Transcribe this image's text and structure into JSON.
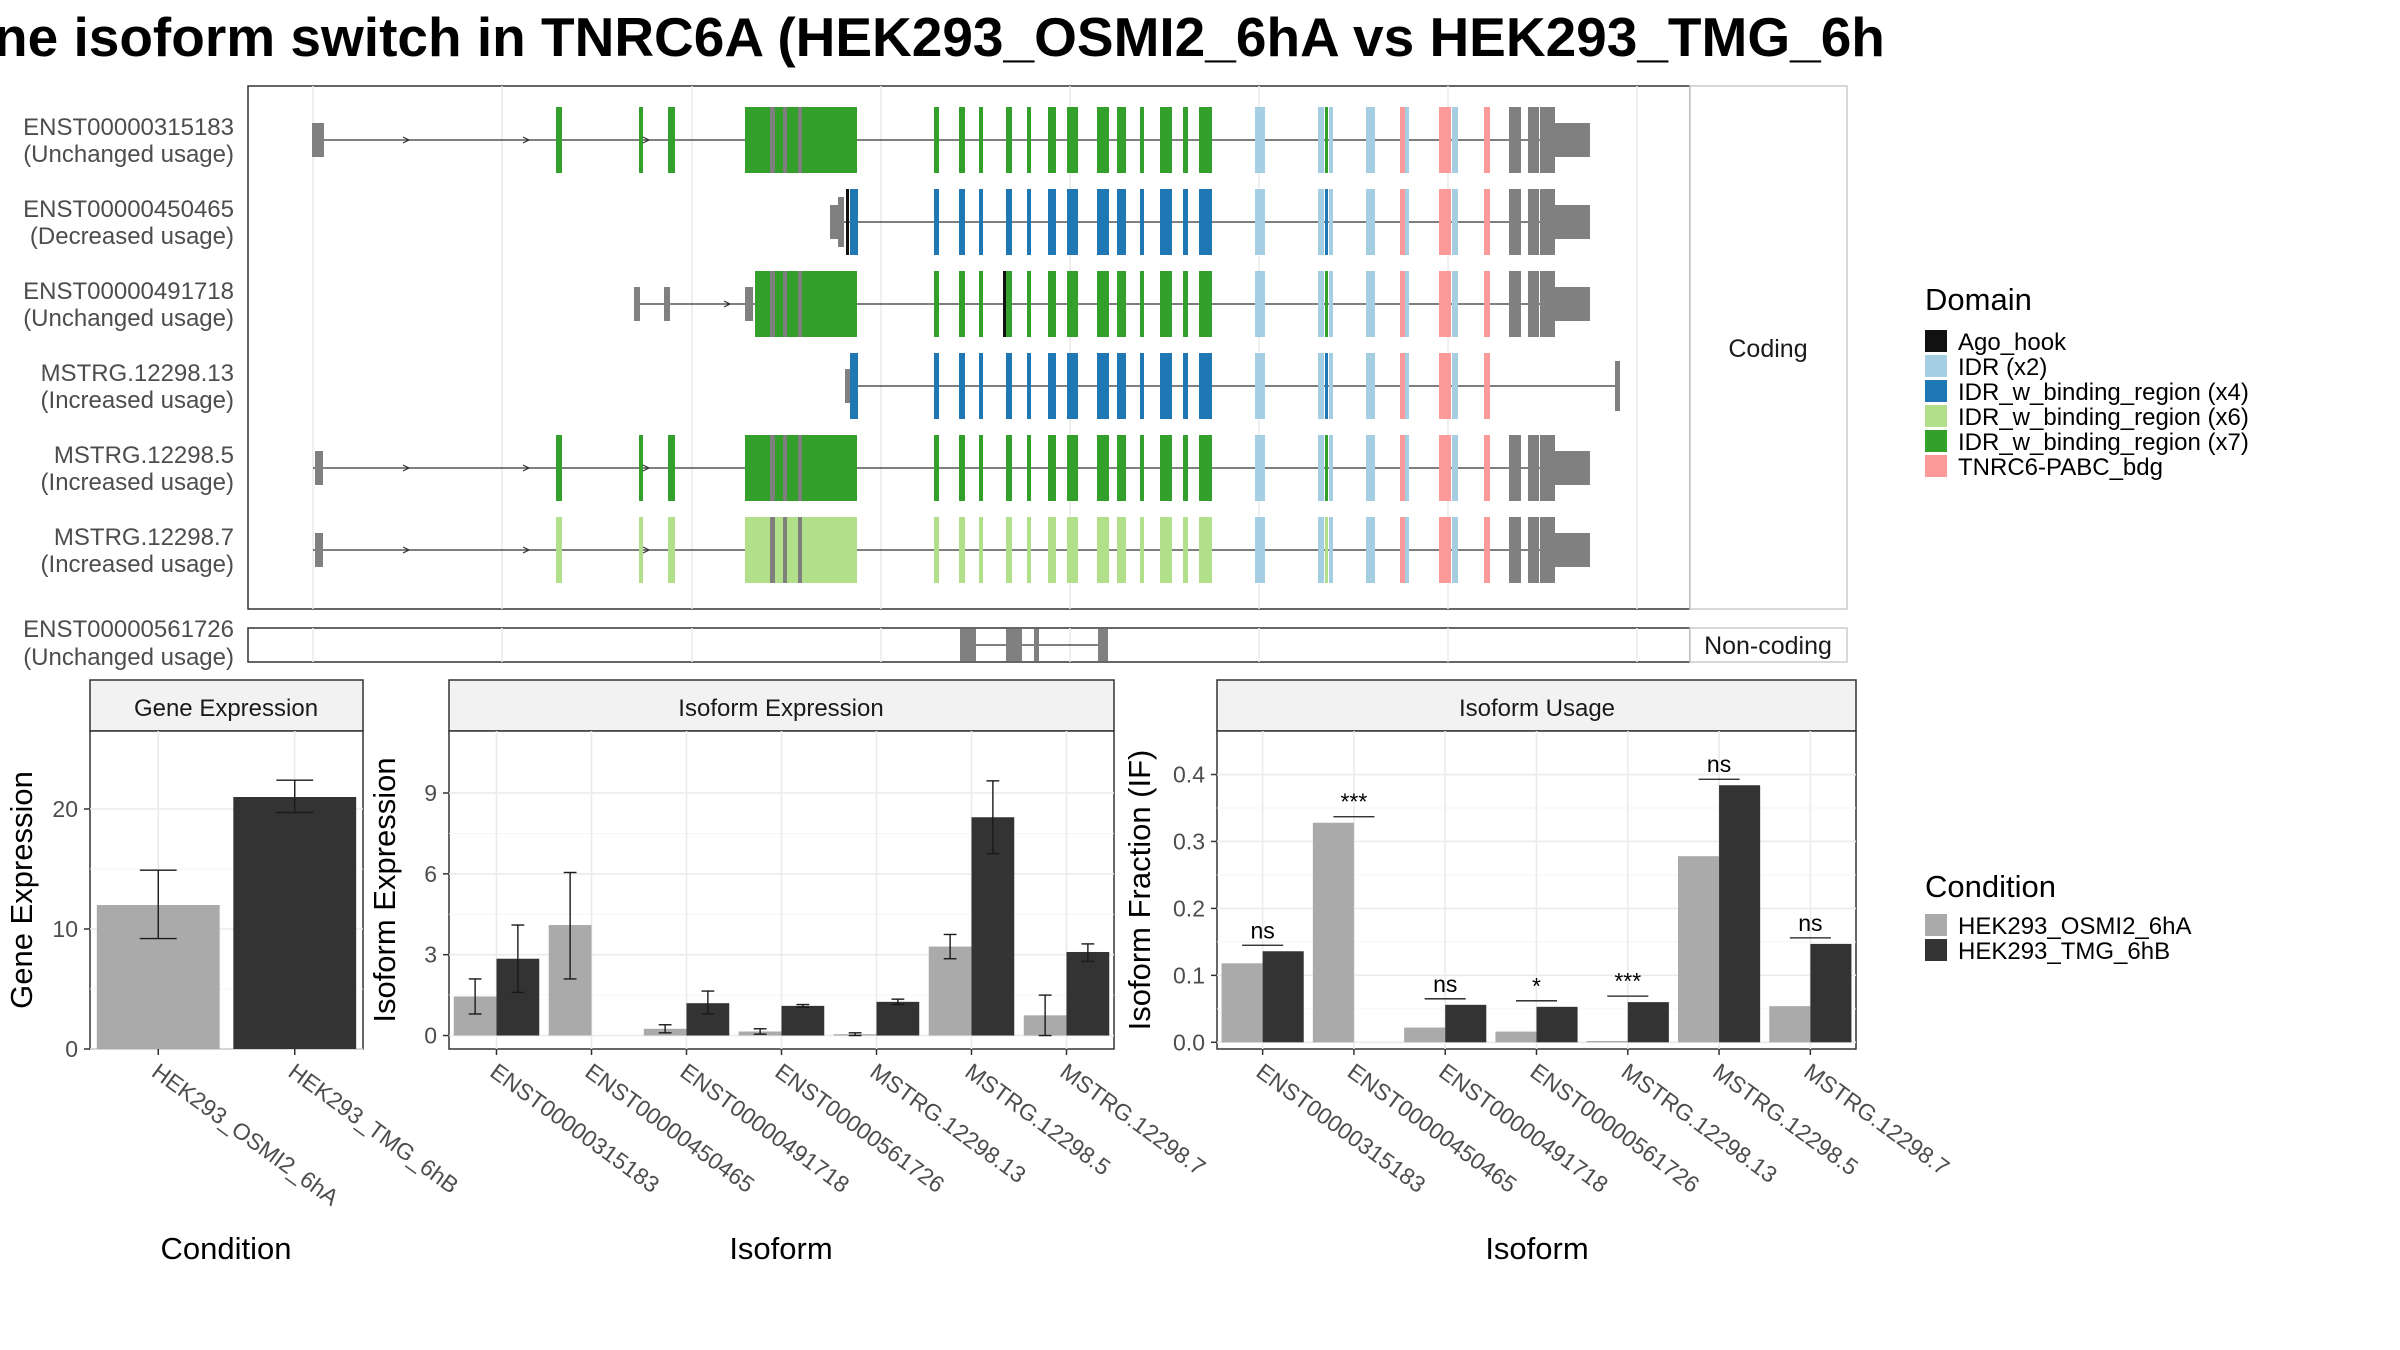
{
  "title": "ne isoform switch in TNRC6A (HEK293_OSMI2_6hA vs HEK293_TMG_6h",
  "structure": {
    "coding_label": "Coding",
    "noncoding_label": "Non-coding",
    "isoforms": [
      {
        "id": "ENST00000315183",
        "usage": "(Unchanged usage)",
        "group": "coding"
      },
      {
        "id": "ENST00000450465",
        "usage": "(Decreased usage)",
        "group": "coding"
      },
      {
        "id": "ENST00000491718",
        "usage": "(Unchanged usage)",
        "group": "coding"
      },
      {
        "id": "MSTRG.12298.13",
        "usage": "(Increased usage)",
        "group": "coding"
      },
      {
        "id": "MSTRG.12298.5",
        "usage": "(Increased usage)",
        "group": "coding"
      },
      {
        "id": "MSTRG.12298.7",
        "usage": "(Increased usage)",
        "group": "coding"
      },
      {
        "id": "ENST00000561726",
        "usage": "(Unchanged usage)",
        "group": "noncoding"
      }
    ]
  },
  "domain_legend": {
    "title": "Domain",
    "items": [
      {
        "label": "Ago_hook",
        "color": "#111111"
      },
      {
        "label": "IDR (x2)",
        "color": "#a6cee3"
      },
      {
        "label": "IDR_w_binding_region (x4)",
        "color": "#1f78b4"
      },
      {
        "label": "IDR_w_binding_region (x6)",
        "color": "#b2df8a"
      },
      {
        "label": "IDR_w_binding_region (x7)",
        "color": "#33a02c"
      },
      {
        "label": "TNRC6-PABC_bdg",
        "color": "#fb9a99"
      }
    ]
  },
  "condition_legend": {
    "title": "Condition",
    "items": [
      {
        "label": "HEK293_OSMI2_6hA",
        "color": "#aaaaaa"
      },
      {
        "label": "HEK293_TMG_6hB",
        "color": "#333333"
      }
    ]
  },
  "chart_data": [
    {
      "type": "bar",
      "title": "Gene Expression",
      "xlabel": "Condition",
      "ylabel": "Gene Expression",
      "ylim": [
        0,
        26.5
      ],
      "yticks": [
        0,
        10,
        20
      ],
      "categories": [
        "HEK293_OSMI2_6hA",
        "HEK293_TMG_6hB"
      ],
      "values": [
        12.0,
        21.0
      ],
      "errors": [
        [
          9.2,
          14.9
        ],
        [
          19.7,
          22.4
        ]
      ]
    },
    {
      "type": "bar",
      "title": "Isoform Expression",
      "xlabel": "Isoform",
      "ylabel": "Isoform Expression",
      "ylim": [
        -0.5,
        11.3
      ],
      "yticks": [
        0,
        3,
        6,
        9
      ],
      "categories": [
        "ENST00000315183",
        "ENST00000450465",
        "ENST00000491718",
        "ENST00000561726",
        "MSTRG.12298.13",
        "MSTRG.12298.5",
        "MSTRG.12298.7"
      ],
      "series": [
        {
          "name": "HEK293_OSMI2_6hA",
          "values": [
            1.45,
            4.1,
            0.25,
            0.15,
            0.05,
            3.3,
            0.75
          ],
          "errors": [
            [
              0.8,
              2.1
            ],
            [
              2.1,
              6.05
            ],
            [
              0.1,
              0.4
            ],
            [
              0.05,
              0.25
            ],
            [
              0.0,
              0.1
            ],
            [
              2.85,
              3.75
            ],
            [
              0.0,
              1.5
            ]
          ]
        },
        {
          "name": "HEK293_TMG_6hB",
          "values": [
            2.85,
            0.0,
            1.2,
            1.1,
            1.25,
            8.1,
            3.1
          ],
          "errors": [
            [
              1.6,
              4.1
            ],
            [
              0.0,
              0.0
            ],
            [
              0.8,
              1.65
            ],
            [
              1.05,
              1.15
            ],
            [
              1.15,
              1.35
            ],
            [
              6.75,
              9.45
            ],
            [
              2.75,
              3.4
            ]
          ]
        }
      ]
    },
    {
      "type": "bar",
      "title": "Isoform Usage",
      "xlabel": "Isoform",
      "ylabel": "Isoform Fraction (IF)",
      "ylim": [
        -0.01,
        0.465
      ],
      "yticks": [
        "0.0",
        "0.1",
        "0.2",
        "0.3",
        "0.4"
      ],
      "categories": [
        "ENST00000315183",
        "ENST00000450465",
        "ENST00000491718",
        "ENST00000561726",
        "MSTRG.12298.13",
        "MSTRG.12298.5",
        "MSTRG.12298.7"
      ],
      "series": [
        {
          "name": "HEK293_OSMI2_6hA",
          "values": [
            0.118,
            0.328,
            0.022,
            0.016,
            0.002,
            0.278,
            0.054
          ]
        },
        {
          "name": "HEK293_TMG_6hB",
          "values": [
            0.136,
            0.0,
            0.056,
            0.053,
            0.06,
            0.384,
            0.147
          ]
        }
      ],
      "significance": [
        "ns",
        "***",
        "ns",
        "*",
        "***",
        "ns",
        "ns"
      ]
    }
  ]
}
